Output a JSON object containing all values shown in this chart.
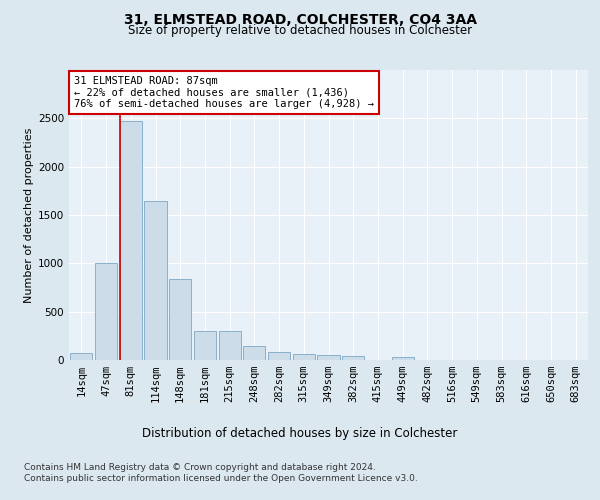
{
  "title1": "31, ELMSTEAD ROAD, COLCHESTER, CO4 3AA",
  "title2": "Size of property relative to detached houses in Colchester",
  "xlabel": "Distribution of detached houses by size in Colchester",
  "ylabel": "Number of detached properties",
  "categories": [
    "14sqm",
    "47sqm",
    "81sqm",
    "114sqm",
    "148sqm",
    "181sqm",
    "215sqm",
    "248sqm",
    "282sqm",
    "315sqm",
    "349sqm",
    "382sqm",
    "415sqm",
    "449sqm",
    "482sqm",
    "516sqm",
    "549sqm",
    "583sqm",
    "616sqm",
    "650sqm",
    "683sqm"
  ],
  "values": [
    75,
    1000,
    2470,
    1650,
    840,
    300,
    300,
    140,
    80,
    60,
    55,
    40,
    0,
    30,
    0,
    0,
    0,
    0,
    0,
    0,
    0
  ],
  "bar_color": "#ccdce8",
  "bar_edge_color": "#8ab0cc",
  "annotation_line0": "31 ELMSTEAD ROAD: 87sqm",
  "annotation_line1": "← 22% of detached houses are smaller (1,436)",
  "annotation_line2": "76% of semi-detached houses are larger (4,928) →",
  "annotation_box_facecolor": "#ffffff",
  "annotation_box_edgecolor": "#cc0000",
  "marker_line_color": "#cc0000",
  "ylim": [
    0,
    3000
  ],
  "yticks": [
    0,
    500,
    1000,
    1500,
    2000,
    2500
  ],
  "footer1": "Contains HM Land Registry data © Crown copyright and database right 2024.",
  "footer2": "Contains public sector information licensed under the Open Government Licence v3.0.",
  "bg_color": "#dce8f0",
  "plot_bg_color": "#e8f0f8",
  "grid_color": "#ffffff",
  "title1_fontsize": 10,
  "title2_fontsize": 8.5,
  "xlabel_fontsize": 8.5,
  "ylabel_fontsize": 8,
  "tick_fontsize": 7.5,
  "footer_fontsize": 6.5
}
